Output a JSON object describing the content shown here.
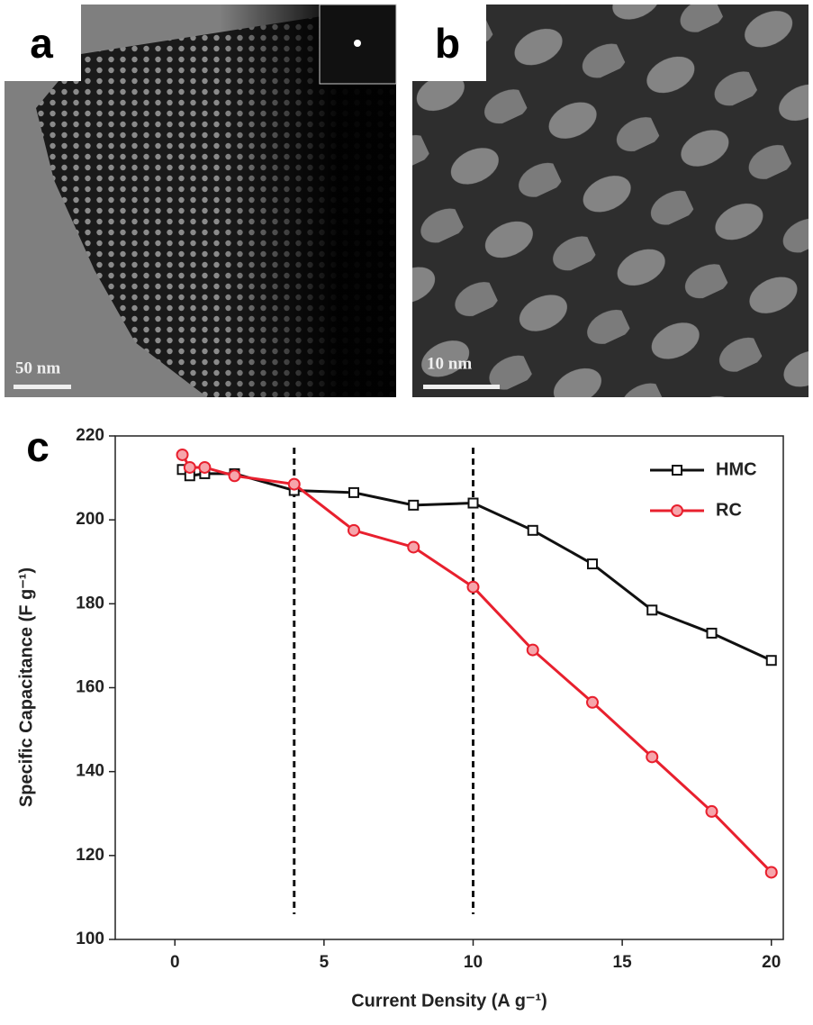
{
  "panels": {
    "a": "a",
    "b": "b",
    "scale_a": "50 nm",
    "scale_b": "10 nm"
  },
  "chart_data": {
    "type": "line",
    "panel_label": "c",
    "x_label": "Current Density (A g⁻¹)",
    "y_label": "Specific Capacitance (F g⁻¹)",
    "xlim": [
      -2,
      20.4
    ],
    "ylim": [
      100,
      220
    ],
    "xticks": [
      0,
      5,
      10,
      15,
      20
    ],
    "yticks": [
      100,
      120,
      140,
      160,
      180,
      200,
      220
    ],
    "vlines": [
      4,
      10
    ],
    "legend": "upper right",
    "series": [
      {
        "name": "HMC",
        "color": "#111111",
        "marker": "square",
        "x": [
          0.25,
          0.5,
          1,
          2,
          4,
          6,
          8,
          10,
          12,
          14,
          16,
          18,
          20
        ],
        "values": [
          212,
          210.5,
          211,
          211,
          207,
          206.5,
          203.5,
          204,
          197.5,
          189.5,
          178.5,
          173,
          166.5
        ]
      },
      {
        "name": "RC",
        "color": "#e8202e",
        "marker": "circle",
        "x": [
          0.25,
          0.5,
          1,
          2,
          4,
          6,
          8,
          10,
          12,
          14,
          16,
          18,
          20
        ],
        "values": [
          215.5,
          212.5,
          212.5,
          210.5,
          208.5,
          197.5,
          193.5,
          184,
          169,
          156.5,
          143.5,
          130.5,
          116
        ]
      }
    ]
  }
}
